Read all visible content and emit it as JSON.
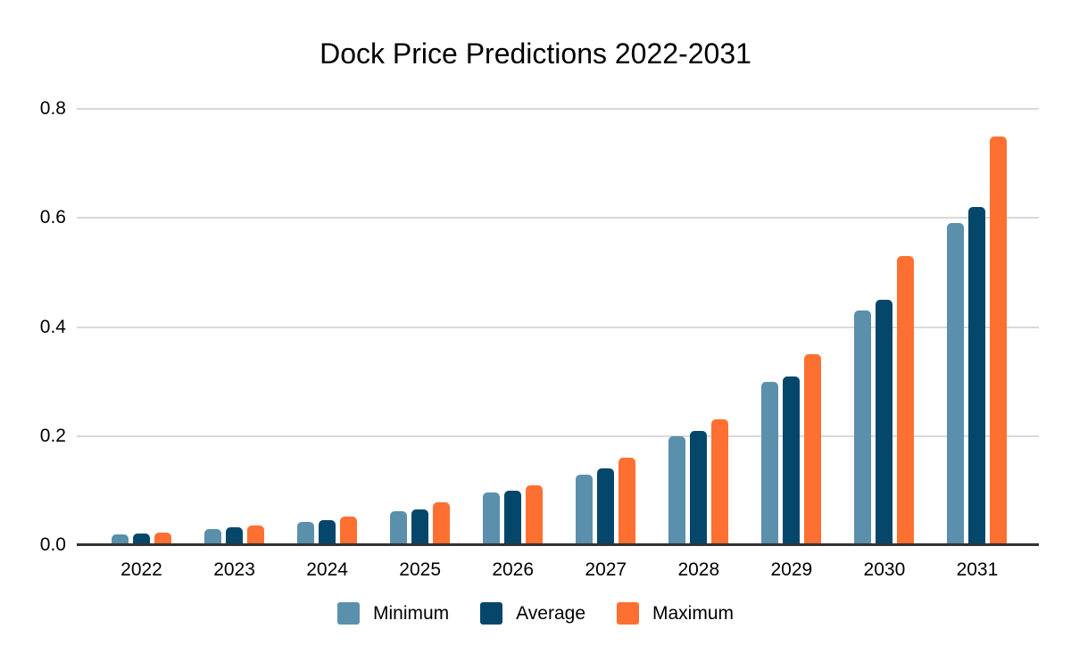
{
  "chart_data": {
    "type": "bar",
    "title": "Dock Price Predictions 2022-2031",
    "categories": [
      "2022",
      "2023",
      "2024",
      "2025",
      "2026",
      "2027",
      "2028",
      "2029",
      "2030",
      "2031"
    ],
    "series": [
      {
        "name": "Minimum",
        "color": "#5a90ac",
        "values": [
          0.02,
          0.03,
          0.042,
          0.062,
          0.096,
          0.13,
          0.2,
          0.3,
          0.43,
          0.59
        ]
      },
      {
        "name": "Average",
        "color": "#05476a",
        "values": [
          0.021,
          0.033,
          0.046,
          0.066,
          0.1,
          0.14,
          0.21,
          0.31,
          0.45,
          0.62
        ]
      },
      {
        "name": "Maximum",
        "color": "#fe7031",
        "values": [
          0.023,
          0.036,
          0.052,
          0.079,
          0.11,
          0.16,
          0.23,
          0.35,
          0.53,
          0.75
        ]
      }
    ],
    "xlabel": "",
    "ylabel": "",
    "ylim": [
      0,
      0.8
    ],
    "yticks": [
      0,
      0.2,
      0.4,
      0.6,
      0.8
    ],
    "ytick_labels": [
      "0.0",
      "0.2",
      "0.4",
      "0.6",
      "0.8"
    ],
    "grid": true,
    "legend_position": "bottom",
    "colors": {
      "background": "#ffffff",
      "gridline": "#d9d9d9",
      "axis_line": "#333333",
      "text": "#000000"
    }
  }
}
